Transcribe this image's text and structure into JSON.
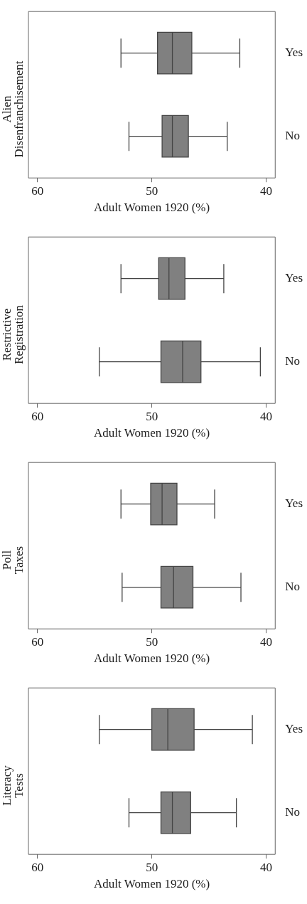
{
  "chart_data": [
    {
      "type": "box",
      "orientation": "horizontal",
      "title": "Alien Disenfranchisement",
      "xlabel": "Adult Women 1920 (%)",
      "categories": [
        "Yes",
        "No"
      ],
      "color": "#808080",
      "xlim": [
        60.8,
        39.2
      ],
      "xticks": [
        60,
        50,
        40
      ],
      "grid": false,
      "boxes": [
        {
          "low": 42.3,
          "q1": 46.5,
          "median": 48.2,
          "q3": 49.5,
          "high": 52.7
        },
        {
          "low": 43.4,
          "q1": 46.8,
          "median": 48.2,
          "q3": 49.1,
          "high": 52.0
        }
      ]
    },
    {
      "type": "box",
      "orientation": "horizontal",
      "title": "Restrictive Registration",
      "xlabel": "Adult Women 1920 (%)",
      "categories": [
        "Yes",
        "No"
      ],
      "color": "#808080",
      "xlim": [
        60.8,
        39.2
      ],
      "xticks": [
        60,
        50,
        40
      ],
      "grid": false,
      "boxes": [
        {
          "low": 43.7,
          "q1": 47.1,
          "median": 48.5,
          "q3": 49.4,
          "high": 52.7
        },
        {
          "low": 40.5,
          "q1": 45.7,
          "median": 47.3,
          "q3": 49.2,
          "high": 54.6
        }
      ]
    },
    {
      "type": "box",
      "orientation": "horizontal",
      "title": "Poll Taxes",
      "xlabel": "Adult Women 1920 (%)",
      "categories": [
        "Yes",
        "No"
      ],
      "color": "#808080",
      "xlim": [
        60.8,
        39.2
      ],
      "xticks": [
        60,
        50,
        40
      ],
      "grid": false,
      "boxes": [
        {
          "low": 44.5,
          "q1": 47.8,
          "median": 49.1,
          "q3": 50.1,
          "high": 52.7
        },
        {
          "low": 42.2,
          "q1": 46.4,
          "median": 48.1,
          "q3": 49.2,
          "high": 52.6
        }
      ]
    },
    {
      "type": "box",
      "orientation": "horizontal",
      "title": "Literacy Tests",
      "xlabel": "Adult Women 1920 (%)",
      "categories": [
        "Yes",
        "No"
      ],
      "color": "#808080",
      "xlim": [
        60.8,
        39.2
      ],
      "xticks": [
        60,
        50,
        40
      ],
      "grid": false,
      "boxes": [
        {
          "low": 41.2,
          "q1": 46.3,
          "median": 48.6,
          "q3": 50.0,
          "high": 54.6
        },
        {
          "low": 42.6,
          "q1": 46.6,
          "median": 48.2,
          "q3": 49.2,
          "high": 52.0
        }
      ]
    }
  ]
}
